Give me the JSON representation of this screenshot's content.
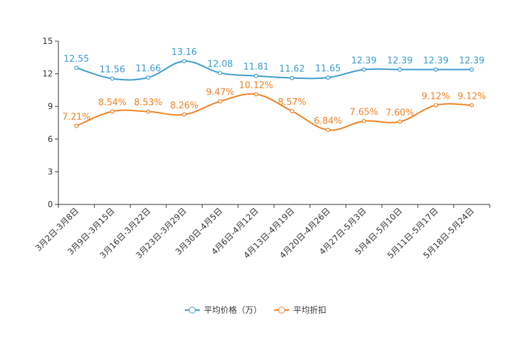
{
  "chart_data": {
    "type": "line",
    "title": "",
    "xlabel": "",
    "ylabel": "",
    "ylim": [
      0,
      15
    ],
    "yticks": [
      0,
      3,
      6,
      9,
      12,
      15
    ],
    "ytick_labels": [
      "0",
      "3",
      "6",
      "9",
      "12",
      "15"
    ],
    "categories": [
      "3月2日-3月8日",
      "3月9日-3月15日",
      "3月16日-3月22日",
      "3月23日-3月29日",
      "3月30日-4月5日",
      "4月6日-4月12日",
      "4月13日-4月19日",
      "4月20日-4月26日",
      "4月27日-5月3日",
      "5月4日-5月10日",
      "5月11日-5月17日",
      "5月18日-5月24日"
    ],
    "series": [
      {
        "name": "平均价格（万）",
        "color": "#3a9bd0",
        "values": [
          12.55,
          11.56,
          11.66,
          13.16,
          12.08,
          11.81,
          11.62,
          11.65,
          12.39,
          12.39,
          12.39,
          12.39
        ],
        "labels": [
          "12.55",
          "11.56",
          "11.66",
          "13.16",
          "12.08",
          "11.81",
          "11.62",
          "11.65",
          "12.39",
          "12.39",
          "12.39",
          "12.39"
        ]
      },
      {
        "name": "平均折扣",
        "color": "#f08020",
        "values": [
          7.21,
          8.54,
          8.53,
          8.26,
          9.47,
          10.12,
          8.57,
          6.84,
          7.65,
          7.6,
          9.12,
          9.12
        ],
        "labels": [
          "7.21%",
          "8.54%",
          "8.53%",
          "8.26%",
          "9.47%",
          "10.12%",
          "8.57%",
          "6.84%",
          "7.65%",
          "7.60%",
          "9.12%",
          "9.12%"
        ]
      }
    ],
    "grid": false,
    "legend_position": "bottom-center",
    "axis_color": "#333333",
    "text_color": "#333333"
  }
}
